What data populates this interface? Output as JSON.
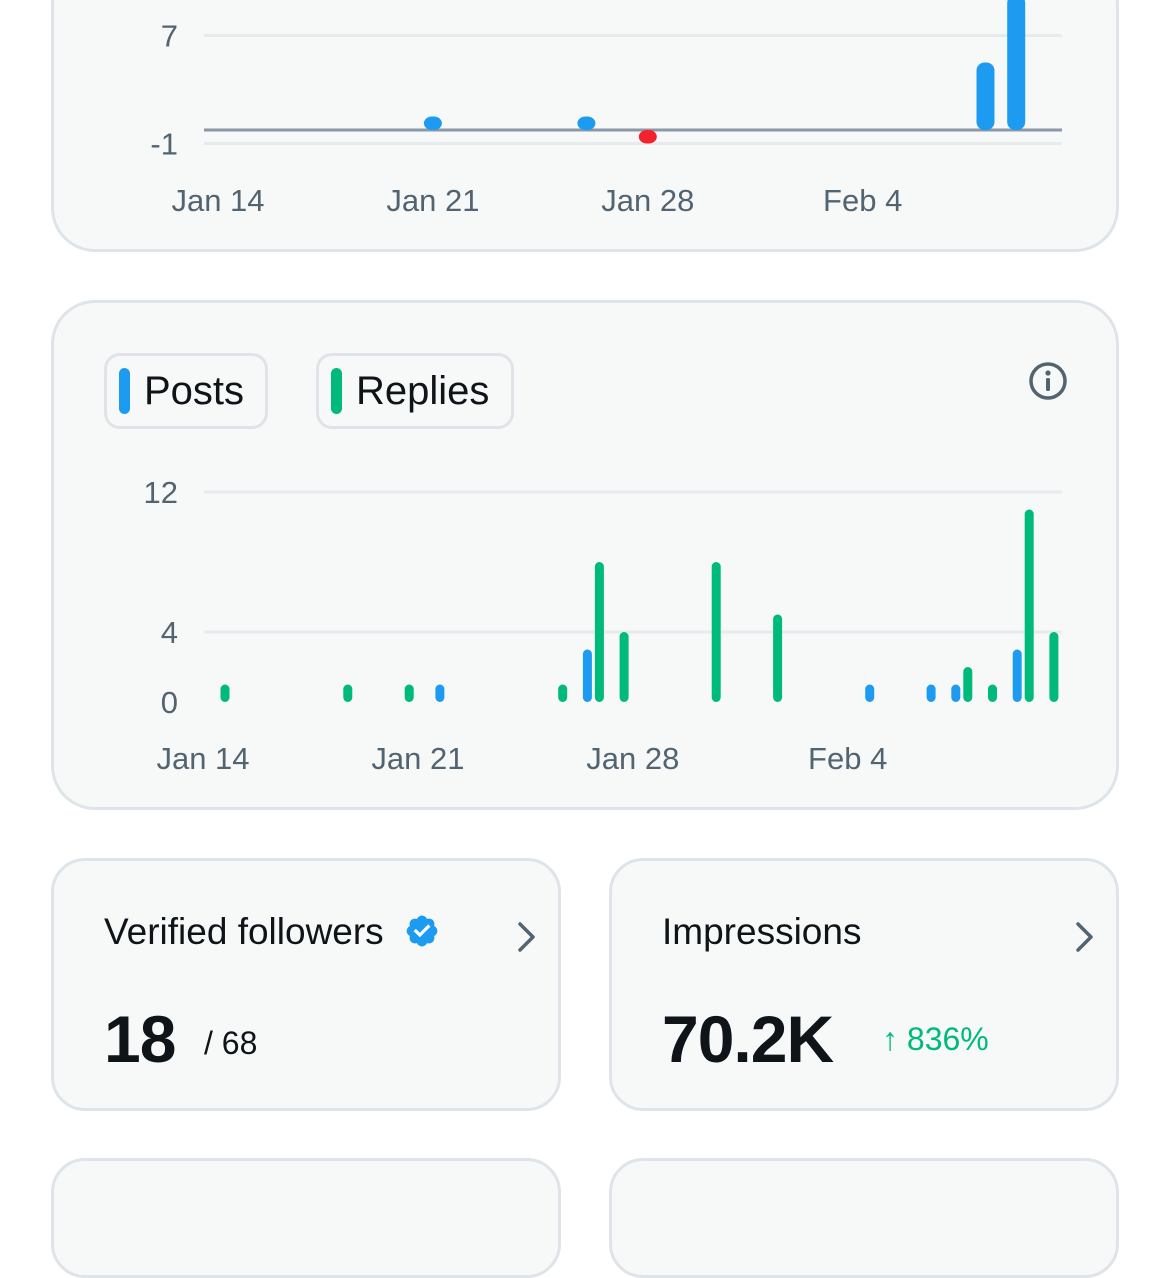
{
  "colors": {
    "posts": "#1d9bf0",
    "replies": "#00ba7c",
    "negative": "#f4212e",
    "grid": "#e6ebee",
    "baseline": "#8b98a5"
  },
  "charts": {
    "top": {
      "type": "bar",
      "y_ticks": [
        "7",
        "-1"
      ],
      "x_ticks": [
        "Jan 14",
        "Jan 21",
        "Jan 28",
        "Feb 4"
      ],
      "chart_data": {
        "type": "bar",
        "x": [
          "Jan 21",
          "Jan 26",
          "Jan 28",
          "Feb 8",
          "Feb 9"
        ],
        "values": [
          1,
          1,
          -1,
          5,
          10
        ],
        "ylim": [
          -1,
          10
        ],
        "y_ticks": [
          7,
          -1
        ]
      }
    },
    "activity": {
      "legend": {
        "posts_label": "Posts",
        "replies_label": "Replies"
      },
      "info_icon": "info-icon",
      "y_ticks": [
        "12",
        "4",
        "0"
      ],
      "x_ticks": [
        "Jan 14",
        "Jan 21",
        "Jan 28",
        "Feb 4"
      ],
      "chart_data": {
        "type": "bar",
        "categories": [
          "Jan 14",
          "Jan 18",
          "Jan 20",
          "Jan 21",
          "Jan 25",
          "Jan 26",
          "Jan 27",
          "Jan 30",
          "Feb 1",
          "Feb 4",
          "Feb 6",
          "Feb 7",
          "Feb 8",
          "Feb 9",
          "Feb 10"
        ],
        "series": [
          {
            "name": "Posts",
            "values": [
              0,
              0,
              0,
              1,
              0,
              3,
              0,
              0,
              0,
              1,
              1,
              1,
              0,
              3,
              0
            ]
          },
          {
            "name": "Replies",
            "values": [
              1,
              1,
              1,
              0,
              1,
              8,
              4,
              8,
              5,
              0,
              0,
              2,
              1,
              11,
              4
            ]
          }
        ],
        "ylim": [
          0,
          12
        ],
        "y_ticks": [
          12,
          4,
          0
        ]
      }
    }
  },
  "stats": {
    "verified": {
      "title": "Verified followers",
      "value": "18",
      "total": "/ 68",
      "badge_icon": "verified-badge-icon"
    },
    "impressions": {
      "title": "Impressions",
      "value": "70.2K",
      "change": "↑ 836%"
    }
  }
}
